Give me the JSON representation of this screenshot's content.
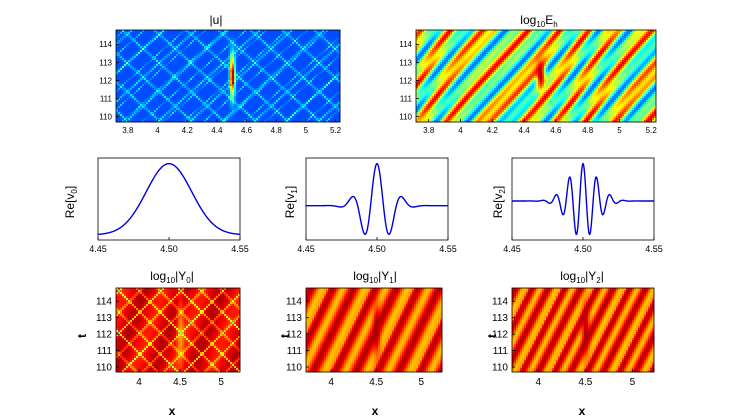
{
  "figure": {
    "panels": {
      "top_left": {
        "title": {
          "main": "|u|"
        }
      },
      "top_right": {
        "title": {
          "main": "log",
          "sub": "10",
          "tail": "E",
          "tail_sub": "h"
        }
      },
      "mid_left": {
        "ylabel": {
          "main": "Re[v",
          "sub": "0",
          "tail": "]"
        }
      },
      "mid_center": {
        "ylabel": {
          "main": "Re[v",
          "sub": "1",
          "tail": "]"
        }
      },
      "mid_right": {
        "ylabel": {
          "main": "Re[v",
          "sub": "2",
          "tail": "]"
        }
      },
      "bot_left": {
        "title": {
          "main": "log",
          "sub": "10",
          "tail": "|Y",
          "tail_sub": "0",
          "end": "|"
        },
        "xlabel": "x",
        "ylabel": "t"
      },
      "bot_center": {
        "title": {
          "main": "log",
          "sub": "10",
          "tail": "|Y",
          "tail_sub": "1",
          "end": "|"
        },
        "xlabel": "x",
        "ylabel": "t"
      },
      "bot_right": {
        "title": {
          "main": "log",
          "sub": "10",
          "tail": "|Y",
          "tail_sub": "2",
          "end": "|"
        },
        "xlabel": "x",
        "ylabel": "t"
      }
    }
  },
  "chart_data": [
    {
      "id": "top_left",
      "type": "heatmap",
      "title": "|u|",
      "colormap": "jet",
      "xlim": [
        3.72,
        5.23
      ],
      "ylim": [
        109.7,
        114.8
      ],
      "xticks": [
        3.8,
        4,
        4.2,
        4.4,
        4.6,
        4.8,
        5,
        5.2
      ],
      "xtick_labels": [
        "3.8",
        "4",
        "4.2",
        "4.4",
        "4.6",
        "4.8",
        "5",
        "5.2"
      ],
      "yticks": [
        110,
        111,
        112,
        113,
        114
      ],
      "ytick_labels": [
        "110",
        "111",
        "112",
        "113",
        "114"
      ]
    },
    {
      "id": "top_right",
      "type": "heatmap",
      "title": "log10 Eh",
      "colormap": "jet",
      "xlim": [
        3.72,
        5.23
      ],
      "ylim": [
        109.7,
        114.8
      ],
      "xticks": [
        3.8,
        4,
        4.2,
        4.4,
        4.6,
        4.8,
        5,
        5.2
      ],
      "xtick_labels": [
        "3.8",
        "4",
        "4.2",
        "4.4",
        "4.6",
        "4.8",
        "5",
        "5.2"
      ],
      "yticks": [
        110,
        111,
        112,
        113,
        114
      ],
      "ytick_labels": [
        "110",
        "111",
        "112",
        "113",
        "114"
      ]
    },
    {
      "id": "mid_left",
      "type": "line",
      "ylabel": "Re[v0]",
      "color": "#0000dd",
      "xlim": [
        4.45,
        4.55
      ],
      "xticks": [
        4.45,
        4.5,
        4.55
      ],
      "xtick_labels": [
        "4.45",
        "4.50",
        "4.55"
      ],
      "function": {
        "kind": "gaussian-wavepacket",
        "center": 4.5,
        "sigma": 0.016,
        "frequency": 0
      }
    },
    {
      "id": "mid_center",
      "type": "line",
      "ylabel": "Re[v1]",
      "color": "#0000dd",
      "xlim": [
        4.45,
        4.55
      ],
      "xticks": [
        4.45,
        4.5,
        4.55
      ],
      "xtick_labels": [
        "4.45",
        "4.50",
        "4.55"
      ],
      "function": {
        "kind": "gaussian-wavepacket",
        "center": 4.5,
        "sigma": 0.01,
        "frequency": 55
      }
    },
    {
      "id": "mid_right",
      "type": "line",
      "ylabel": "Re[v2]",
      "color": "#0000dd",
      "xlim": [
        4.45,
        4.55
      ],
      "xticks": [
        4.45,
        4.5,
        4.55
      ],
      "xtick_labels": [
        "4.45",
        "4.50",
        "4.55"
      ],
      "function": {
        "kind": "gaussian-wavepacket",
        "center": 4.5,
        "sigma": 0.01,
        "frequency": 105
      }
    },
    {
      "id": "bot_left",
      "type": "heatmap",
      "title": "log10 |Y0|",
      "colormap": "jet",
      "xlabel": "x",
      "ylabel": "t",
      "xlim": [
        3.72,
        5.23
      ],
      "ylim": [
        109.7,
        114.8
      ],
      "xticks": [
        4,
        4.5,
        5
      ],
      "xtick_labels": [
        "4",
        "4.5",
        "5"
      ],
      "yticks": [
        110,
        111,
        112,
        113,
        114
      ],
      "ytick_labels": [
        "110",
        "111",
        "112",
        "113",
        "114"
      ]
    },
    {
      "id": "bot_center",
      "type": "heatmap",
      "title": "log10 |Y1|",
      "colormap": "jet",
      "xlabel": "x",
      "ylabel": "t",
      "xlim": [
        3.72,
        5.23
      ],
      "ylim": [
        109.7,
        114.8
      ],
      "xticks": [
        4,
        4.5,
        5
      ],
      "xtick_labels": [
        "4",
        "4.5",
        "5"
      ],
      "yticks": [
        110,
        111,
        112,
        113,
        114
      ],
      "ytick_labels": [
        "110",
        "111",
        "112",
        "113",
        "114"
      ]
    },
    {
      "id": "bot_right",
      "type": "heatmap",
      "title": "log10 |Y2|",
      "colormap": "jet",
      "xlabel": "x",
      "ylabel": "t",
      "xlim": [
        3.72,
        5.23
      ],
      "ylim": [
        109.7,
        114.8
      ],
      "xticks": [
        4,
        4.5,
        5
      ],
      "xtick_labels": [
        "4",
        "4.5",
        "5"
      ],
      "yticks": [
        110,
        111,
        112,
        113,
        114
      ],
      "ytick_labels": [
        "110",
        "111",
        "112",
        "113",
        "114"
      ]
    }
  ]
}
